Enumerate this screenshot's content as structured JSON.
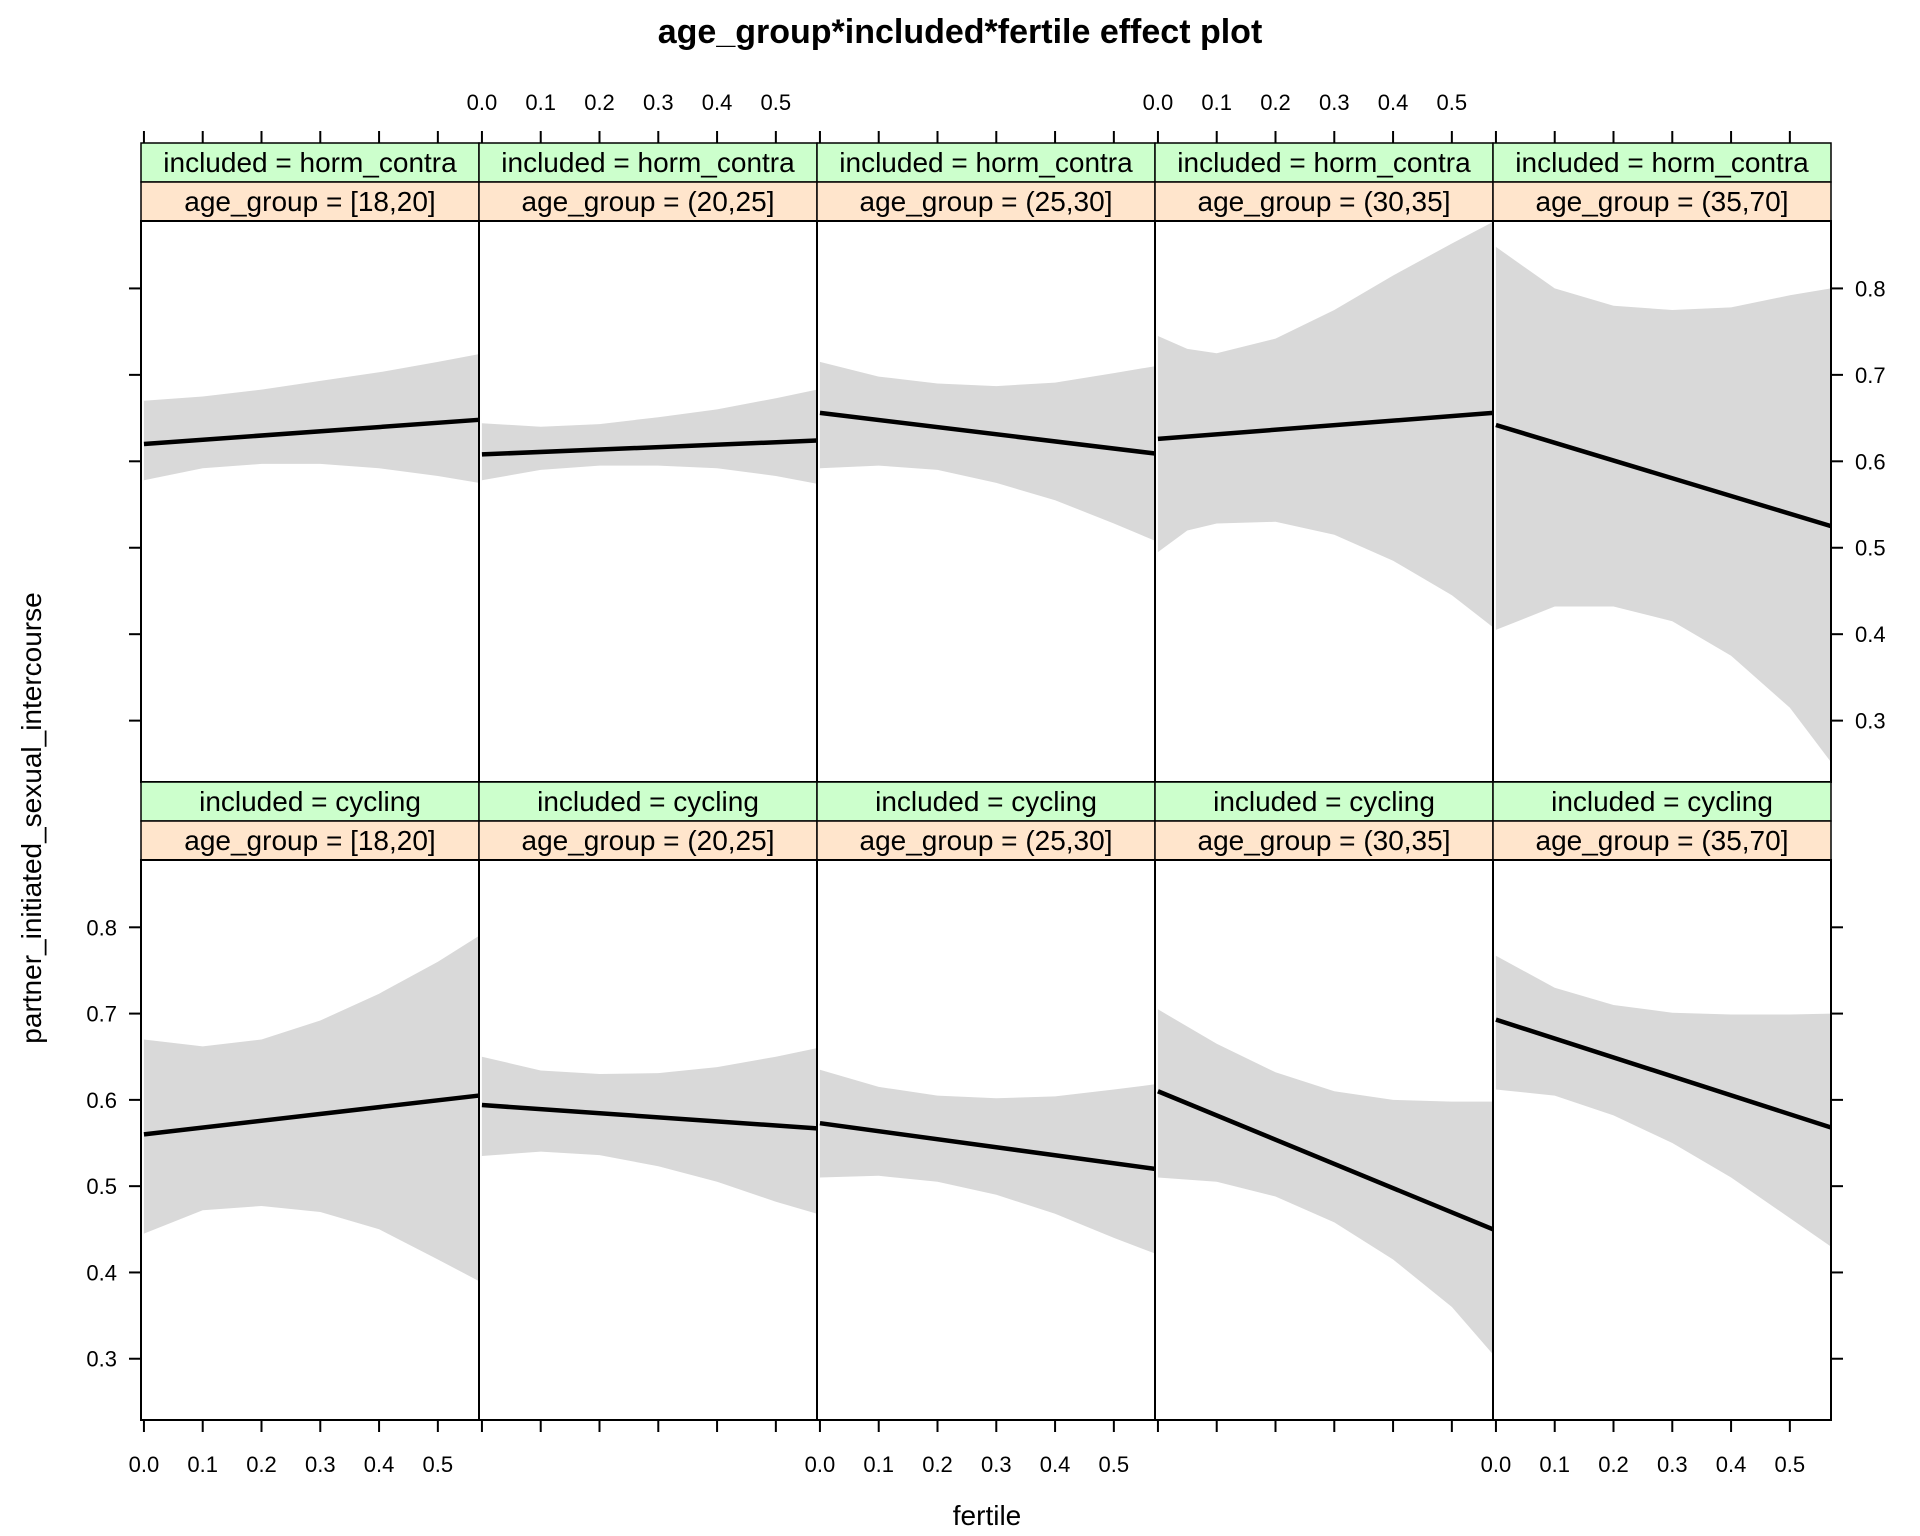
{
  "chart_data": {
    "type": "line",
    "title": "age_group*included*fertile effect plot",
    "xlabel": "fertile",
    "ylabel": "partner_initiated_sexual_intercourse",
    "xlim": [
      -0.005,
      0.57
    ],
    "ylim": [
      0.229,
      0.878
    ],
    "x_ticks": [
      0.0,
      0.1,
      0.2,
      0.3,
      0.4,
      0.5
    ],
    "x_tick_labels": [
      "0.0",
      "0.1",
      "0.2",
      "0.3",
      "0.4",
      "0.5"
    ],
    "y_ticks": [
      0.3,
      0.4,
      0.5,
      0.6,
      0.7,
      0.8
    ],
    "y_tick_labels": [
      "0.3",
      "0.4",
      "0.5",
      "0.6",
      "0.7",
      "0.8"
    ],
    "grid": false,
    "colors": {
      "strip_included": "#ccffcc",
      "strip_age_group": "#ffe5cc",
      "band": "#d9d9d9",
      "line": "#000000"
    },
    "panels": [
      {
        "included": "included = horm_contra",
        "age_group": "age_group = [18,20]",
        "fit": [
          [
            0,
            0.62
          ],
          [
            0.57,
            0.648
          ]
        ],
        "upper": [
          [
            0,
            0.67
          ],
          [
            0.1,
            0.675
          ],
          [
            0.2,
            0.683
          ],
          [
            0.3,
            0.693
          ],
          [
            0.4,
            0.703
          ],
          [
            0.5,
            0.715
          ],
          [
            0.57,
            0.724
          ]
        ],
        "lower": [
          [
            0,
            0.578
          ],
          [
            0.1,
            0.592
          ],
          [
            0.2,
            0.597
          ],
          [
            0.3,
            0.597
          ],
          [
            0.4,
            0.592
          ],
          [
            0.5,
            0.583
          ],
          [
            0.57,
            0.575
          ]
        ]
      },
      {
        "included": "included = horm_contra",
        "age_group": "age_group = (20,25]",
        "fit": [
          [
            0,
            0.608
          ],
          [
            0.57,
            0.624
          ]
        ],
        "upper": [
          [
            0,
            0.644
          ],
          [
            0.1,
            0.64
          ],
          [
            0.2,
            0.643
          ],
          [
            0.3,
            0.651
          ],
          [
            0.4,
            0.66
          ],
          [
            0.5,
            0.673
          ],
          [
            0.57,
            0.683
          ]
        ],
        "lower": [
          [
            0,
            0.578
          ],
          [
            0.1,
            0.59
          ],
          [
            0.2,
            0.595
          ],
          [
            0.3,
            0.595
          ],
          [
            0.4,
            0.592
          ],
          [
            0.5,
            0.583
          ],
          [
            0.57,
            0.574
          ]
        ]
      },
      {
        "included": "included = horm_contra",
        "age_group": "age_group = (25,30]",
        "fit": [
          [
            0,
            0.656
          ],
          [
            0.57,
            0.609
          ]
        ],
        "upper": [
          [
            0,
            0.715
          ],
          [
            0.1,
            0.698
          ],
          [
            0.2,
            0.69
          ],
          [
            0.3,
            0.687
          ],
          [
            0.4,
            0.691
          ],
          [
            0.5,
            0.702
          ],
          [
            0.57,
            0.71
          ]
        ],
        "lower": [
          [
            0,
            0.592
          ],
          [
            0.1,
            0.595
          ],
          [
            0.2,
            0.59
          ],
          [
            0.3,
            0.575
          ],
          [
            0.4,
            0.555
          ],
          [
            0.5,
            0.528
          ],
          [
            0.57,
            0.508
          ]
        ]
      },
      {
        "included": "included = horm_contra",
        "age_group": "age_group = (30,35]",
        "fit": [
          [
            0,
            0.626
          ],
          [
            0.57,
            0.656
          ]
        ],
        "upper": [
          [
            0,
            0.745
          ],
          [
            0.05,
            0.73
          ],
          [
            0.1,
            0.725
          ],
          [
            0.2,
            0.742
          ],
          [
            0.3,
            0.775
          ],
          [
            0.4,
            0.815
          ],
          [
            0.5,
            0.852
          ],
          [
            0.57,
            0.877
          ]
        ],
        "lower": [
          [
            0,
            0.495
          ],
          [
            0.05,
            0.52
          ],
          [
            0.1,
            0.528
          ],
          [
            0.2,
            0.53
          ],
          [
            0.3,
            0.515
          ],
          [
            0.4,
            0.485
          ],
          [
            0.5,
            0.445
          ],
          [
            0.57,
            0.408
          ]
        ]
      },
      {
        "included": "included = horm_contra",
        "age_group": "age_group = (35,70]",
        "fit": [
          [
            0,
            0.642
          ],
          [
            0.57,
            0.525
          ]
        ],
        "upper": [
          [
            0,
            0.848
          ],
          [
            0.1,
            0.8
          ],
          [
            0.2,
            0.78
          ],
          [
            0.3,
            0.775
          ],
          [
            0.4,
            0.778
          ],
          [
            0.5,
            0.792
          ],
          [
            0.57,
            0.8
          ]
        ],
        "lower": [
          [
            0,
            0.405
          ],
          [
            0.1,
            0.432
          ],
          [
            0.2,
            0.432
          ],
          [
            0.3,
            0.415
          ],
          [
            0.4,
            0.375
          ],
          [
            0.5,
            0.315
          ],
          [
            0.57,
            0.252
          ]
        ]
      },
      {
        "included": "included = cycling",
        "age_group": "age_group = [18,20]",
        "fit": [
          [
            0,
            0.56
          ],
          [
            0.57,
            0.605
          ]
        ],
        "upper": [
          [
            0,
            0.67
          ],
          [
            0.1,
            0.662
          ],
          [
            0.2,
            0.67
          ],
          [
            0.3,
            0.692
          ],
          [
            0.4,
            0.723
          ],
          [
            0.5,
            0.76
          ],
          [
            0.57,
            0.79
          ]
        ],
        "lower": [
          [
            0,
            0.445
          ],
          [
            0.1,
            0.472
          ],
          [
            0.2,
            0.477
          ],
          [
            0.3,
            0.47
          ],
          [
            0.4,
            0.45
          ],
          [
            0.5,
            0.415
          ],
          [
            0.57,
            0.39
          ]
        ]
      },
      {
        "included": "included = cycling",
        "age_group": "age_group = (20,25]",
        "fit": [
          [
            0,
            0.594
          ],
          [
            0.57,
            0.567
          ]
        ],
        "upper": [
          [
            0,
            0.65
          ],
          [
            0.1,
            0.634
          ],
          [
            0.2,
            0.63
          ],
          [
            0.3,
            0.631
          ],
          [
            0.4,
            0.638
          ],
          [
            0.5,
            0.65
          ],
          [
            0.57,
            0.66
          ]
        ],
        "lower": [
          [
            0,
            0.535
          ],
          [
            0.1,
            0.54
          ],
          [
            0.2,
            0.536
          ],
          [
            0.3,
            0.523
          ],
          [
            0.4,
            0.505
          ],
          [
            0.5,
            0.482
          ],
          [
            0.57,
            0.468
          ]
        ]
      },
      {
        "included": "included = cycling",
        "age_group": "age_group = (25,30]",
        "fit": [
          [
            0,
            0.573
          ],
          [
            0.57,
            0.52
          ]
        ],
        "upper": [
          [
            0,
            0.635
          ],
          [
            0.1,
            0.615
          ],
          [
            0.2,
            0.605
          ],
          [
            0.3,
            0.602
          ],
          [
            0.4,
            0.604
          ],
          [
            0.5,
            0.612
          ],
          [
            0.57,
            0.618
          ]
        ],
        "lower": [
          [
            0,
            0.51
          ],
          [
            0.1,
            0.512
          ],
          [
            0.2,
            0.505
          ],
          [
            0.3,
            0.49
          ],
          [
            0.4,
            0.468
          ],
          [
            0.5,
            0.44
          ],
          [
            0.57,
            0.422
          ]
        ]
      },
      {
        "included": "included = cycling",
        "age_group": "age_group = (30,35]",
        "fit": [
          [
            0,
            0.61
          ],
          [
            0.57,
            0.45
          ]
        ],
        "upper": [
          [
            0,
            0.705
          ],
          [
            0.1,
            0.665
          ],
          [
            0.2,
            0.632
          ],
          [
            0.3,
            0.61
          ],
          [
            0.4,
            0.6
          ],
          [
            0.5,
            0.598
          ],
          [
            0.57,
            0.598
          ]
        ],
        "lower": [
          [
            0,
            0.51
          ],
          [
            0.1,
            0.505
          ],
          [
            0.2,
            0.488
          ],
          [
            0.3,
            0.458
          ],
          [
            0.4,
            0.415
          ],
          [
            0.5,
            0.36
          ],
          [
            0.57,
            0.305
          ]
        ]
      },
      {
        "included": "included = cycling",
        "age_group": "age_group = (35,70]",
        "fit": [
          [
            0,
            0.693
          ],
          [
            0.57,
            0.568
          ]
        ],
        "upper": [
          [
            0,
            0.767
          ],
          [
            0.1,
            0.73
          ],
          [
            0.2,
            0.71
          ],
          [
            0.3,
            0.701
          ],
          [
            0.4,
            0.699
          ],
          [
            0.5,
            0.699
          ],
          [
            0.57,
            0.7
          ]
        ],
        "lower": [
          [
            0,
            0.612
          ],
          [
            0.1,
            0.605
          ],
          [
            0.2,
            0.582
          ],
          [
            0.3,
            0.55
          ],
          [
            0.4,
            0.51
          ],
          [
            0.5,
            0.463
          ],
          [
            0.57,
            0.43
          ]
        ]
      }
    ]
  }
}
